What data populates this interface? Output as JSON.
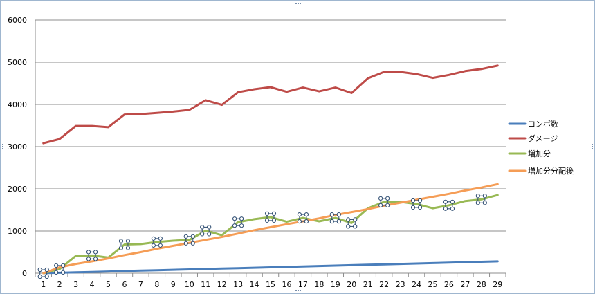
{
  "chart_data": {
    "type": "line",
    "title": "",
    "xlabel": "",
    "ylabel": "",
    "ylim": [
      0,
      6000
    ],
    "yticks": [
      0,
      1000,
      2000,
      3000,
      4000,
      5000,
      6000
    ],
    "grid": "horizontal",
    "legend_position": "right",
    "x": [
      1,
      2,
      3,
      4,
      5,
      6,
      7,
      8,
      9,
      10,
      11,
      12,
      13,
      14,
      15,
      16,
      17,
      18,
      19,
      20,
      21,
      22,
      23,
      24,
      25,
      26,
      27,
      28,
      29
    ],
    "series": [
      {
        "name": "コンボ数",
        "color": "#4a7ebb",
        "values": [
          1,
          10,
          20,
          30,
          40,
          50,
          60,
          70,
          80,
          90,
          100,
          110,
          120,
          130,
          140,
          150,
          160,
          170,
          180,
          190,
          200,
          210,
          220,
          230,
          240,
          250,
          260,
          270,
          280
        ]
      },
      {
        "name": "ダメージ",
        "color": "#be4b48",
        "values": [
          3080,
          3180,
          3490,
          3490,
          3460,
          3760,
          3770,
          3800,
          3830,
          3870,
          4100,
          3990,
          4290,
          4360,
          4410,
          4300,
          4400,
          4310,
          4400,
          4270,
          4620,
          4770,
          4770,
          4720,
          4630,
          4700,
          4790,
          4840,
          4920
        ]
      },
      {
        "name": "増加分",
        "color": "#98b954",
        "values": [
          0,
          100,
          410,
          420,
          370,
          680,
          690,
          740,
          770,
          790,
          1010,
          900,
          1210,
          1280,
          1330,
          1220,
          1310,
          1230,
          1310,
          1190,
          1540,
          1690,
          1690,
          1640,
          1540,
          1610,
          1710,
          1750,
          1850
        ]
      },
      {
        "name": "増加分分配後",
        "color": "#f59d56",
        "values": [
          0,
          140,
          220,
          280,
          350,
          430,
          500,
          580,
          650,
          720,
          790,
          860,
          940,
          1020,
          1090,
          1160,
          1230,
          1300,
          1380,
          1450,
          1520,
          1600,
          1670,
          1740,
          1810,
          1880,
          1960,
          2030,
          2110
        ]
      }
    ],
    "markers": {
      "series": "増加分",
      "x": [
        1,
        2,
        4,
        6,
        8,
        10,
        11,
        13,
        15,
        17,
        19,
        20,
        22,
        24,
        26,
        28
      ]
    }
  }
}
